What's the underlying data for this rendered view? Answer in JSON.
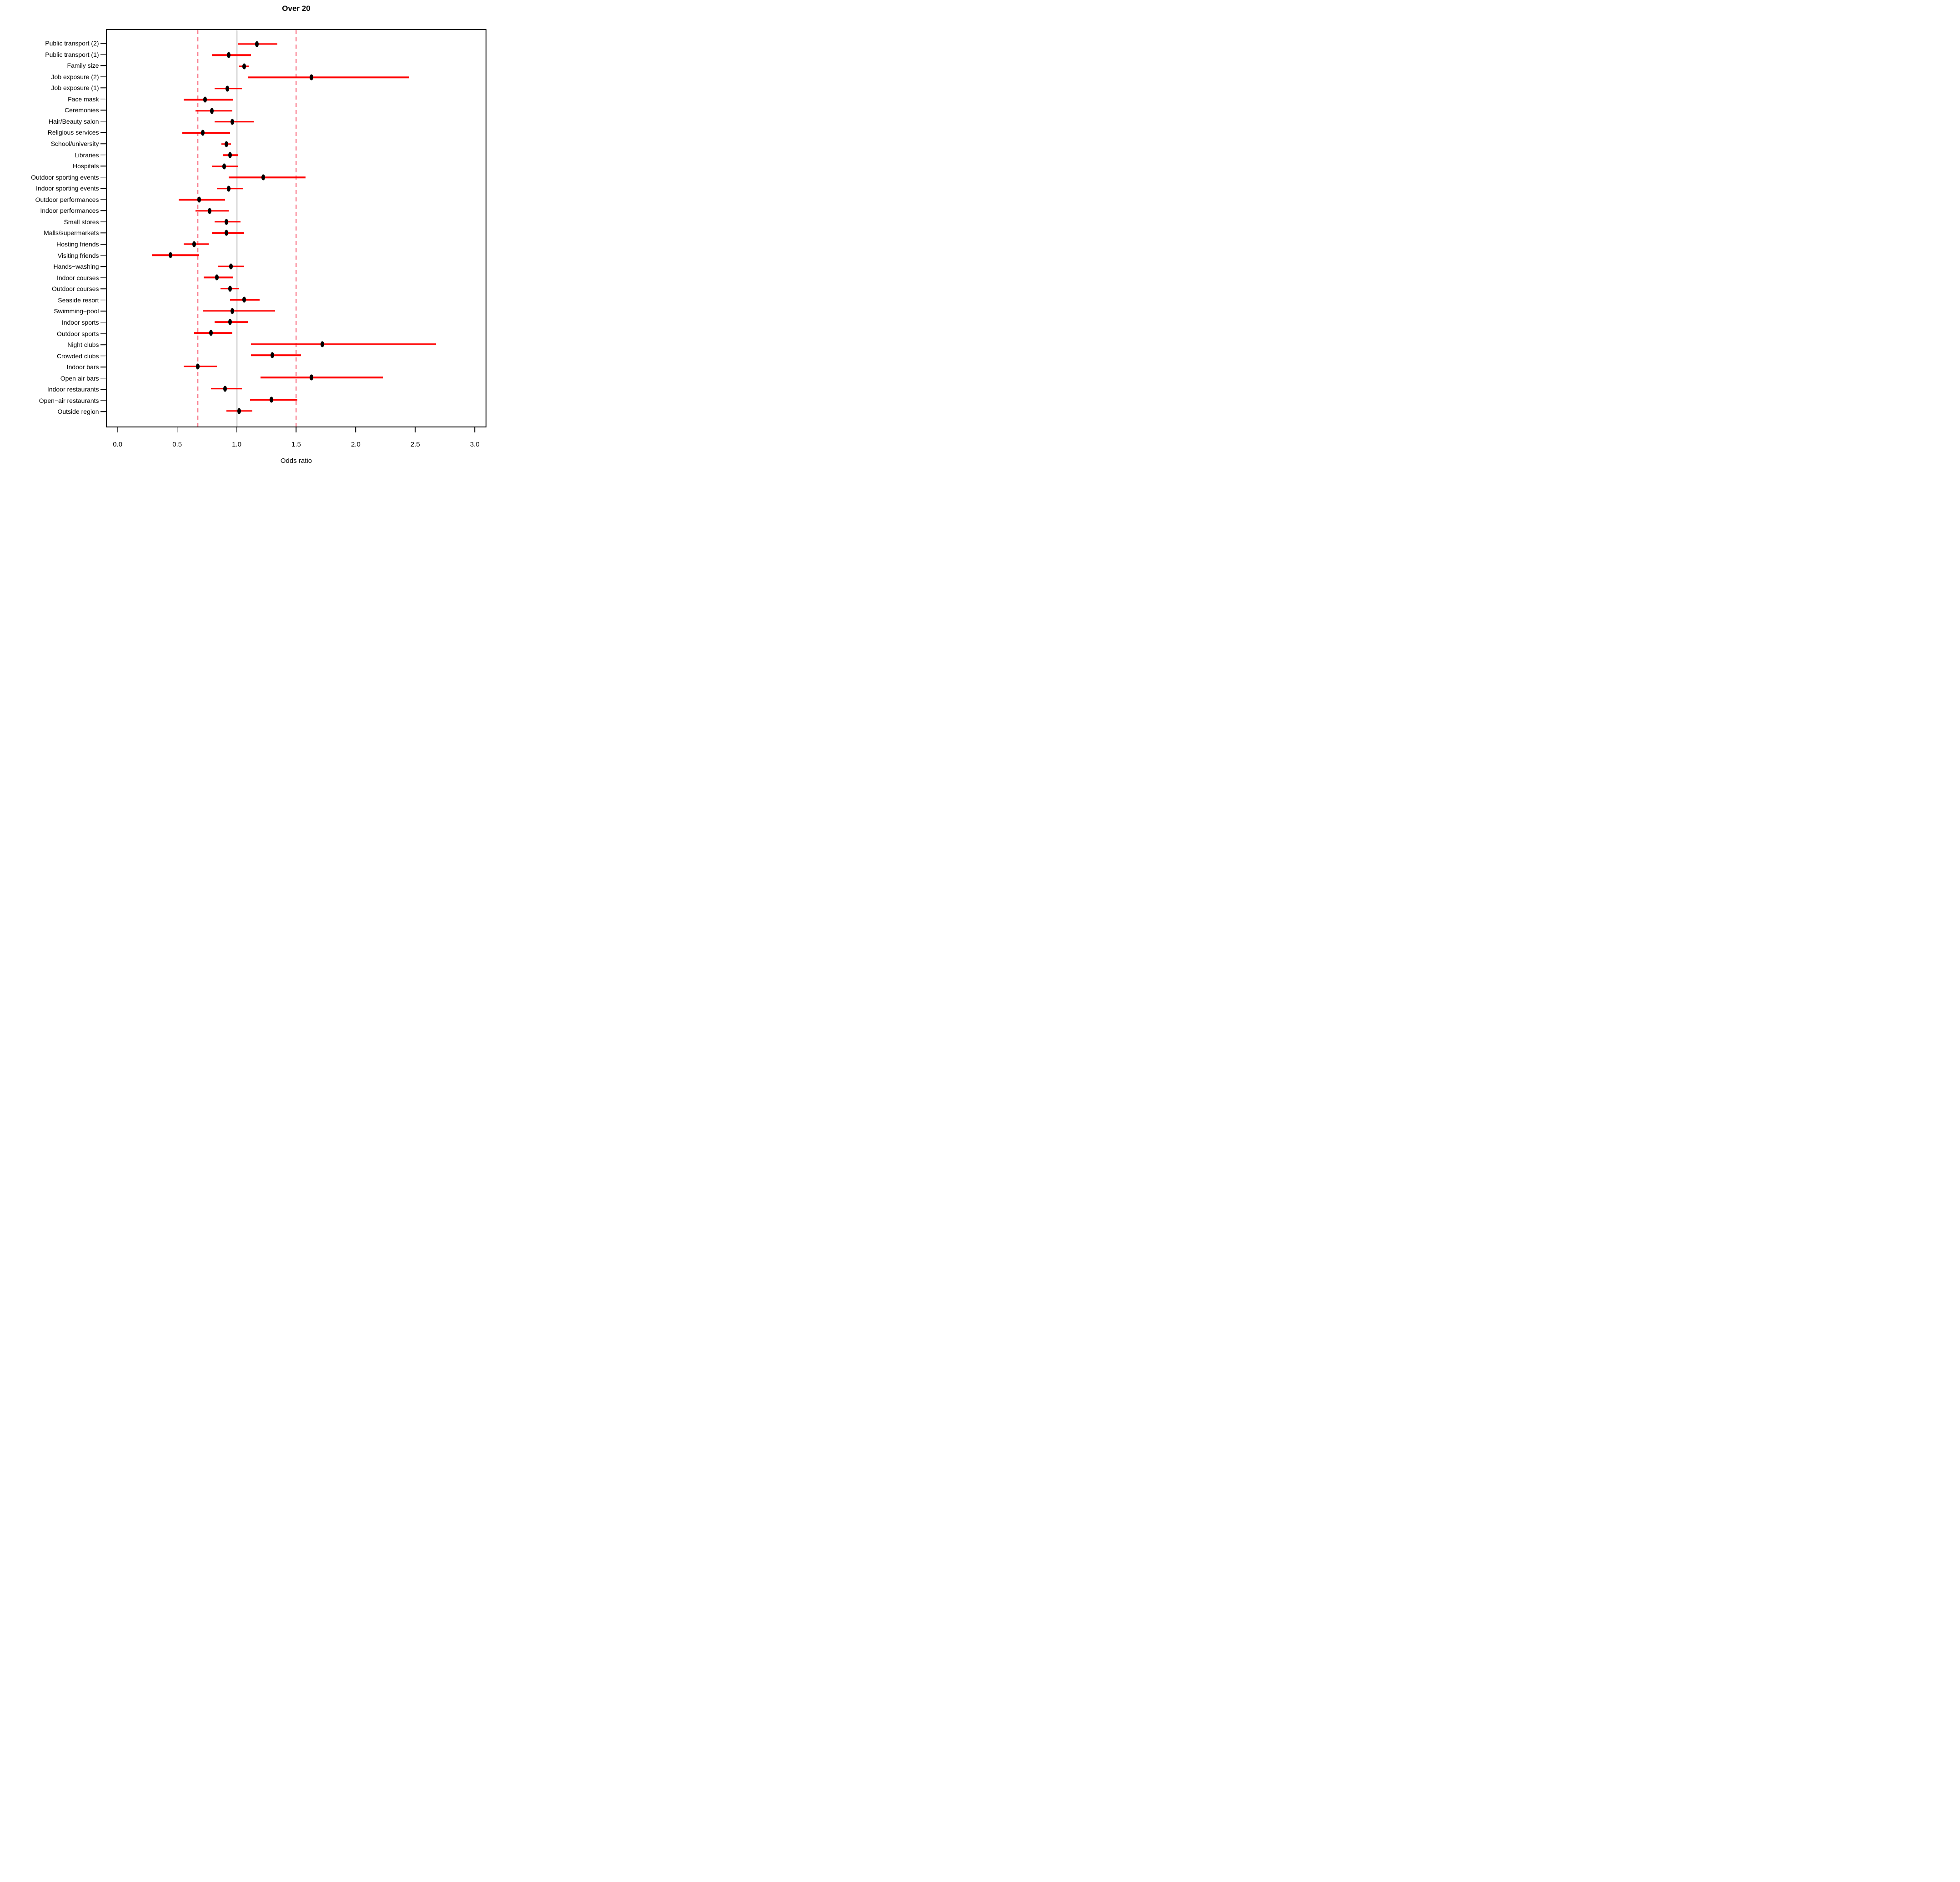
{
  "title": "Over 20",
  "chart_data": {
    "type": "scatter",
    "subtype": "forest-plot",
    "title": "Over 20",
    "xlabel": "Odds ratio",
    "xlim": [
      -0.1,
      3.1
    ],
    "x_ticks": [
      0.0,
      0.5,
      1.0,
      1.5,
      2.0,
      2.5,
      3.0
    ],
    "x_tick_labels": [
      "0.0",
      "0.5",
      "1.0",
      "1.5",
      "2.0",
      "2.5",
      "3.0"
    ],
    "grid": false,
    "legend": "none",
    "reference_lines": {
      "solid_gray_at": 1.0,
      "dashed_red_at": [
        0.67,
        1.5
      ]
    },
    "colors": {
      "ci_bar": "#ff0000",
      "dashed_threshold": "#f84b64",
      "reference_gray": "#bdbdbd",
      "point": "#000000",
      "text": "#000000"
    },
    "rows": [
      {
        "label": "Public transport (2)",
        "or": 1.17,
        "lo": 1.01,
        "hi": 1.34
      },
      {
        "label": "Public transport (1)",
        "or": 0.93,
        "lo": 0.79,
        "hi": 1.12
      },
      {
        "label": "Family size",
        "or": 1.06,
        "lo": 1.02,
        "hi": 1.1
      },
      {
        "label": "Job exposure (2)",
        "or": 1.63,
        "lo": 1.09,
        "hi": 2.45
      },
      {
        "label": "Job exposure (1)",
        "or": 0.92,
        "lo": 0.81,
        "hi": 1.04
      },
      {
        "label": "Face mask",
        "or": 0.73,
        "lo": 0.55,
        "hi": 0.97
      },
      {
        "label": "Ceremonies",
        "or": 0.79,
        "lo": 0.65,
        "hi": 0.96
      },
      {
        "label": "Hair/Beauty salon",
        "or": 0.96,
        "lo": 0.81,
        "hi": 1.14
      },
      {
        "label": "Religious services",
        "or": 0.71,
        "lo": 0.54,
        "hi": 0.94
      },
      {
        "label": "School/university",
        "or": 0.91,
        "lo": 0.87,
        "hi": 0.95
      },
      {
        "label": "Libraries",
        "or": 0.94,
        "lo": 0.88,
        "hi": 1.01
      },
      {
        "label": "Hospitals",
        "or": 0.89,
        "lo": 0.79,
        "hi": 1.01
      },
      {
        "label": "Outdoor sporting events",
        "or": 1.22,
        "lo": 0.93,
        "hi": 1.58
      },
      {
        "label": "Indoor sporting events",
        "or": 0.93,
        "lo": 0.83,
        "hi": 1.05
      },
      {
        "label": "Outdoor performances",
        "or": 0.68,
        "lo": 0.51,
        "hi": 0.9
      },
      {
        "label": "Indoor performances",
        "or": 0.77,
        "lo": 0.65,
        "hi": 0.93
      },
      {
        "label": "Small stores",
        "or": 0.91,
        "lo": 0.81,
        "hi": 1.03
      },
      {
        "label": "Malls/supermarkets",
        "or": 0.91,
        "lo": 0.79,
        "hi": 1.06
      },
      {
        "label": "Hosting friends",
        "or": 0.64,
        "lo": 0.55,
        "hi": 0.76
      },
      {
        "label": "Visiting friends",
        "or": 0.44,
        "lo": 0.28,
        "hi": 0.68
      },
      {
        "label": "Hands−washing",
        "or": 0.95,
        "lo": 0.84,
        "hi": 1.06
      },
      {
        "label": "Indoor courses",
        "or": 0.83,
        "lo": 0.72,
        "hi": 0.97
      },
      {
        "label": "Outdoor courses",
        "or": 0.94,
        "lo": 0.86,
        "hi": 1.02
      },
      {
        "label": "Seaside resort",
        "or": 1.06,
        "lo": 0.94,
        "hi": 1.19
      },
      {
        "label": "Swimming−pool",
        "or": 0.96,
        "lo": 0.71,
        "hi": 1.32
      },
      {
        "label": "Indoor sports",
        "or": 0.94,
        "lo": 0.81,
        "hi": 1.09
      },
      {
        "label": "Outdoor sports",
        "or": 0.78,
        "lo": 0.64,
        "hi": 0.96
      },
      {
        "label": "Night clubs",
        "or": 1.72,
        "lo": 1.12,
        "hi": 2.68
      },
      {
        "label": "Crowded clubs",
        "or": 1.3,
        "lo": 1.12,
        "hi": 1.54
      },
      {
        "label": "Indoor bars",
        "or": 0.67,
        "lo": 0.55,
        "hi": 0.83
      },
      {
        "label": "Open air bars",
        "or": 1.63,
        "lo": 1.2,
        "hi": 2.23
      },
      {
        "label": "Indoor restaurants",
        "or": 0.9,
        "lo": 0.78,
        "hi": 1.04
      },
      {
        "label": "Open−air restaurants",
        "or": 1.29,
        "lo": 1.11,
        "hi": 1.51
      },
      {
        "label": "Outside region",
        "or": 1.02,
        "lo": 0.91,
        "hi": 1.13
      }
    ]
  }
}
